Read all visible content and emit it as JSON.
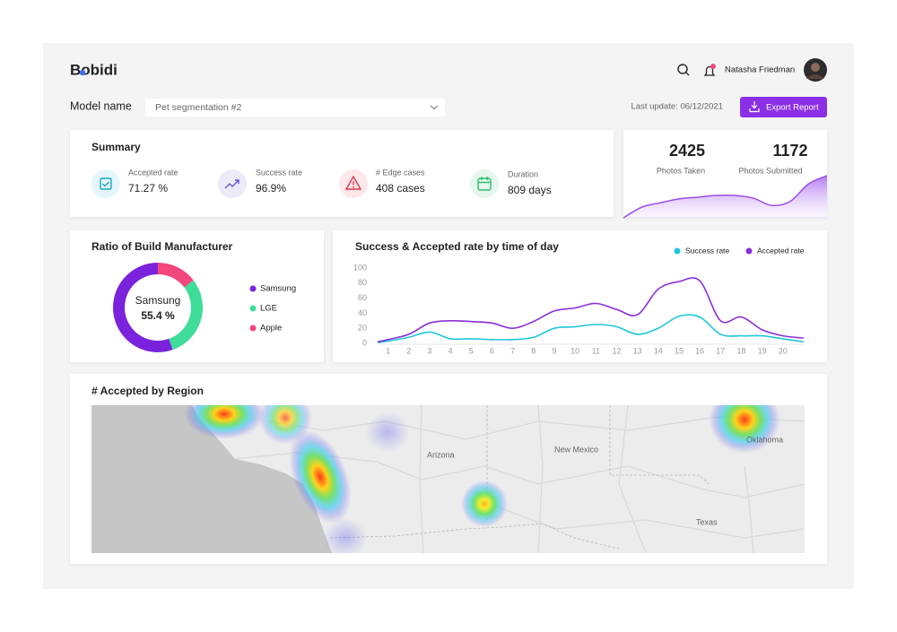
{
  "header": {
    "logo": "Bobidi",
    "user_name": "Natasha Friedman"
  },
  "toolbar": {
    "model_label": "Model name",
    "model_value": "Pet segmentation #2",
    "last_update": "Last update: 06/12/2021",
    "export_button": "Export Report"
  },
  "summary": {
    "title": "Summary",
    "items": [
      {
        "label": "Accepted rate",
        "value": "71.27 %"
      },
      {
        "label": "Success rate",
        "value": "96.9%"
      },
      {
        "label": "# Edge cases",
        "value": "408 cases"
      },
      {
        "label": "Duration",
        "value": "809 days"
      }
    ]
  },
  "stats": {
    "items": [
      {
        "value": 2425,
        "label": "Photos Taken"
      },
      {
        "value": 1172,
        "label": "Photos Submitted"
      }
    ]
  },
  "map": {
    "title": "# Accepted by Region",
    "labels": [
      "Arizona",
      "New Mexico",
      "Texas",
      "Oklahoma"
    ]
  },
  "chart_data": [
    {
      "type": "pie",
      "title": "Ratio of Build Manufacturer",
      "categories": [
        "Samsung",
        "LGE",
        "Apple"
      ],
      "values": [
        55.4,
        30,
        14.6
      ],
      "value_labels": [
        "55.4 %",
        null,
        null
      ],
      "colors": [
        "#7b22dc",
        "#3fdc9a",
        "#f3477c"
      ]
    },
    {
      "type": "line",
      "title": "Success & Accepted rate by time of day",
      "x": [
        0.5,
        1,
        2,
        3,
        4,
        5,
        6,
        7,
        8,
        9,
        10,
        11,
        12,
        13,
        14,
        15,
        16,
        17,
        18,
        19,
        20,
        21
      ],
      "xlim": [
        0.5,
        21
      ],
      "xticks": [
        1,
        2,
        3,
        4,
        5,
        6,
        7,
        8,
        9,
        10,
        11,
        12,
        13,
        14,
        15,
        16,
        17,
        18,
        19,
        20
      ],
      "ylim": [
        0,
        100
      ],
      "yticks": [
        0,
        20,
        40,
        60,
        80,
        100
      ],
      "legend": "top-right",
      "series": [
        {
          "name": "Success rate",
          "color": "#1ec6dc",
          "values": [
            1,
            3,
            8,
            15,
            6,
            6,
            5,
            5,
            8,
            20,
            22,
            25,
            22,
            12,
            20,
            36,
            35,
            12,
            10,
            10,
            6,
            2
          ]
        },
        {
          "name": "Accepted rate",
          "color": "#8a2fd8",
          "values": [
            2,
            5,
            12,
            27,
            30,
            29,
            27,
            20,
            29,
            43,
            47,
            53,
            45,
            38,
            72,
            82,
            83,
            30,
            35,
            18,
            10,
            7
          ]
        }
      ]
    },
    {
      "type": "area",
      "values": [
        0,
        25,
        35,
        44,
        48,
        52,
        52,
        46,
        29,
        38,
        79,
        98
      ],
      "color": "#9b4de8"
    }
  ]
}
